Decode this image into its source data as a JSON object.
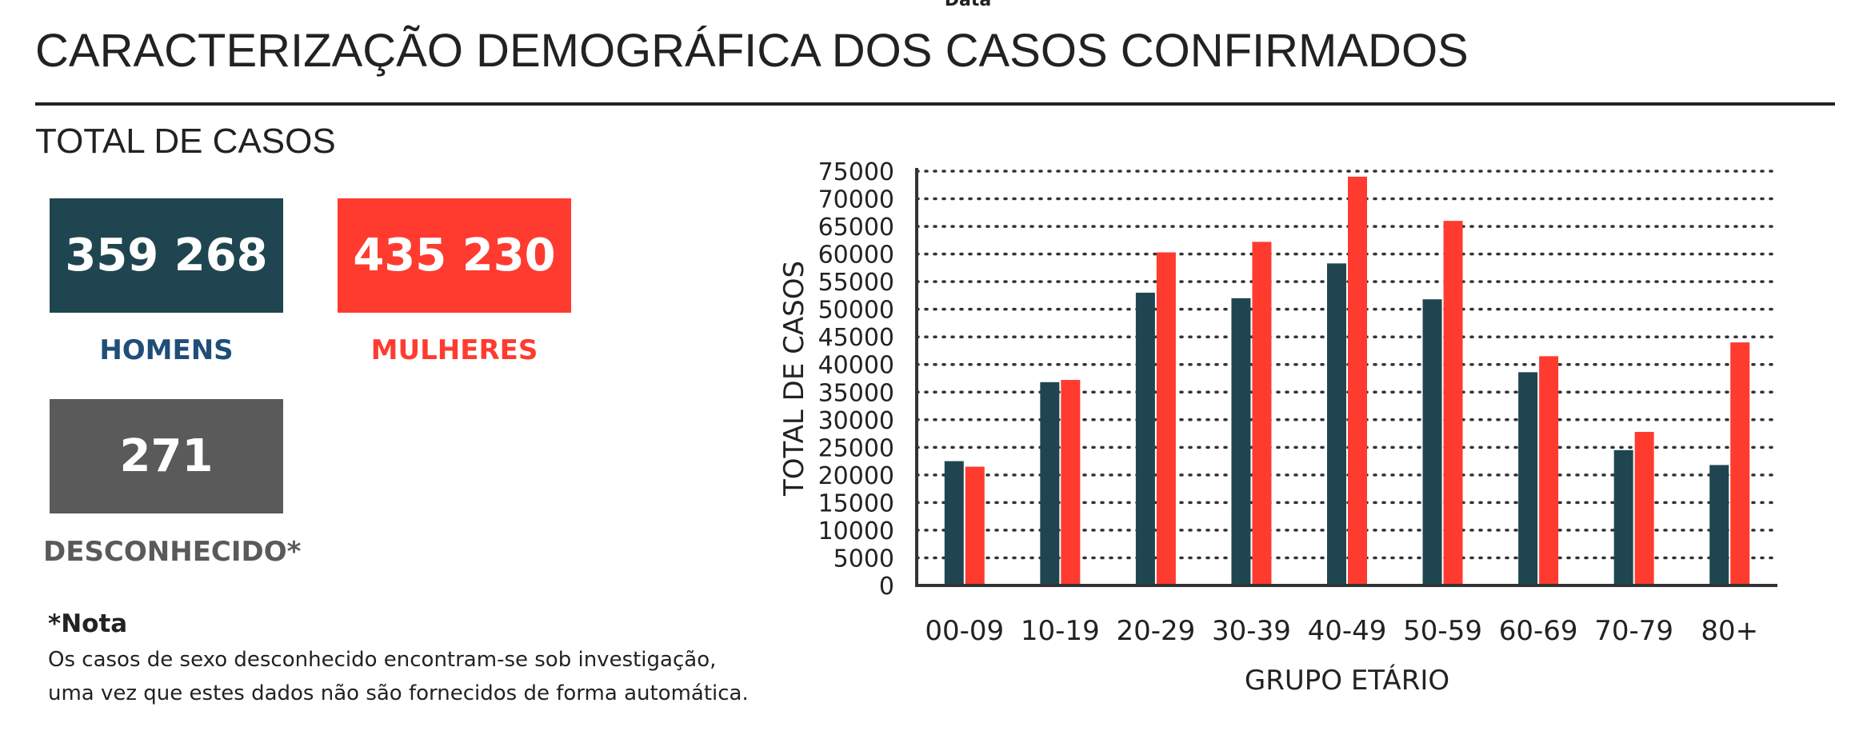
{
  "header": {
    "top_cut_text": "Data",
    "title": "CARACTERIZAÇÃO DEMOGRÁFICA DOS CASOS CONFIRMADOS"
  },
  "summary": {
    "section_title": "TOTAL DE CASOS",
    "men": {
      "value": "359 268",
      "label": "HOMENS",
      "card_color": "#1F4650",
      "label_color": "#1F4E79"
    },
    "women": {
      "value": "435 230",
      "label": "MULHERES",
      "card_color": "#FF3B30",
      "label_color": "#FF3B30"
    },
    "unknown": {
      "value": "271",
      "label": "DESCONHECIDO*",
      "card_color": "#5A5A5A",
      "label_color": "#5A5A5A"
    }
  },
  "note": {
    "heading": "*Nota",
    "lines": [
      "Os casos de sexo desconhecido encontram-se sob investigação,",
      "uma vez que estes dados não são fornecidos de forma automática."
    ]
  },
  "chart_data": {
    "type": "bar",
    "title": "",
    "xlabel": "GRUPO ETÁRIO",
    "ylabel": "TOTAL DE CASOS",
    "categories": [
      "00-09",
      "10-19",
      "20-29",
      "30-39",
      "40-49",
      "50-59",
      "60-69",
      "70-79",
      "80+"
    ],
    "series": [
      {
        "color": "#1F4650",
        "values": [
          22500,
          36800,
          53000,
          52000,
          58300,
          51800,
          38600,
          24500,
          21800
        ]
      },
      {
        "color": "#FF3B30",
        "values": [
          21500,
          37200,
          60300,
          62200,
          74000,
          66000,
          41500,
          27800,
          44000
        ]
      }
    ],
    "ylim": [
      0,
      75000
    ],
    "yticks": [
      0,
      5000,
      10000,
      15000,
      20000,
      25000,
      30000,
      35000,
      40000,
      45000,
      50000,
      55000,
      60000,
      65000,
      70000,
      75000
    ],
    "grid": true,
    "grid_style": "dotted",
    "legend": "none"
  }
}
